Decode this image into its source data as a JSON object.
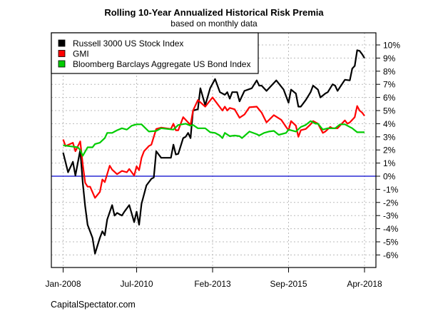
{
  "chart_data": {
    "type": "line",
    "title": "Rolling 10-Year Annualized Historical Risk Premia",
    "subtitle": "based on monthly data",
    "xlabel": "",
    "ylabel": "",
    "x_ticks": [
      "Jan-2008",
      "Jul-2010",
      "Feb-2013",
      "Sep-2015",
      "Apr-2018"
    ],
    "x_range": [
      "2008-01",
      "2018-04"
    ],
    "y_ticks": [
      "-6%",
      "-5%",
      "-4%",
      "-3%",
      "-2%",
      "-1%",
      "0%",
      "1%",
      "2%",
      "3%",
      "4%",
      "5%",
      "6%",
      "7%",
      "8%",
      "9%",
      "10%"
    ],
    "ylim": [
      -6,
      10
    ],
    "y_axis_side": "right",
    "grid": true,
    "zero_line_color": "#0000CC",
    "legend_position": "top-left",
    "series": [
      {
        "name": "Russell 3000 US Stock Index",
        "color": "#000000",
        "points": [
          [
            "2008-01",
            1.8
          ],
          [
            "2008-03",
            0.3
          ],
          [
            "2008-05",
            1.1
          ],
          [
            "2008-06",
            0.05
          ],
          [
            "2008-08",
            2.0
          ],
          [
            "2008-09",
            -0.5
          ],
          [
            "2008-10",
            -2.3
          ],
          [
            "2008-11",
            -3.7
          ],
          [
            "2009-01",
            -4.7
          ],
          [
            "2009-02",
            -5.9
          ],
          [
            "2009-04",
            -4.7
          ],
          [
            "2009-05",
            -4.2
          ],
          [
            "2009-06",
            -4.5
          ],
          [
            "2009-07",
            -3.3
          ],
          [
            "2009-09",
            -2.2
          ],
          [
            "2009-10",
            -3.0
          ],
          [
            "2009-11",
            -2.8
          ],
          [
            "2010-01",
            -3.0
          ],
          [
            "2010-02",
            -2.7
          ],
          [
            "2010-04",
            -2.2
          ],
          [
            "2010-06",
            -3.5
          ],
          [
            "2010-07",
            -2.7
          ],
          [
            "2010-08",
            -3.7
          ],
          [
            "2010-09",
            -2.1
          ],
          [
            "2010-11",
            -0.7
          ],
          [
            "2011-01",
            -0.2
          ],
          [
            "2011-02",
            -0.1
          ],
          [
            "2011-03",
            1.9
          ],
          [
            "2011-05",
            1.4
          ],
          [
            "2011-09",
            1.4
          ],
          [
            "2011-10",
            2.4
          ],
          [
            "2011-11",
            1.65
          ],
          [
            "2011-12",
            1.7
          ],
          [
            "2012-02",
            2.9
          ],
          [
            "2012-03",
            3.0
          ],
          [
            "2012-04",
            3.3
          ],
          [
            "2012-05",
            2.9
          ],
          [
            "2012-06",
            5.0
          ],
          [
            "2012-08",
            5.1
          ],
          [
            "2012-09",
            6.7
          ],
          [
            "2012-11",
            5.4
          ],
          [
            "2013-01",
            6.7
          ],
          [
            "2013-03",
            7.4
          ],
          [
            "2013-05",
            6.4
          ],
          [
            "2013-07",
            6.2
          ],
          [
            "2013-08",
            6.4
          ],
          [
            "2013-09",
            5.9
          ],
          [
            "2013-10",
            6.4
          ],
          [
            "2013-12",
            6.4
          ],
          [
            "2014-01",
            5.7
          ],
          [
            "2014-03",
            6.5
          ],
          [
            "2014-06",
            6.7
          ],
          [
            "2014-08",
            7.3
          ],
          [
            "2014-09",
            6.9
          ],
          [
            "2014-10",
            6.9
          ],
          [
            "2014-12",
            6.5
          ],
          [
            "2015-02",
            6.9
          ],
          [
            "2015-04",
            7.3
          ],
          [
            "2015-07",
            6.6
          ],
          [
            "2015-09",
            5.6
          ],
          [
            "2015-10",
            6.6
          ],
          [
            "2015-12",
            6.3
          ],
          [
            "2016-01",
            5.3
          ],
          [
            "2016-02",
            5.3
          ],
          [
            "2016-04",
            5.8
          ],
          [
            "2016-06",
            6.4
          ],
          [
            "2016-07",
            6.9
          ],
          [
            "2016-09",
            6.6
          ],
          [
            "2016-10",
            6.0
          ],
          [
            "2016-12",
            6.3
          ],
          [
            "2017-01",
            6.4
          ],
          [
            "2017-03",
            7.0
          ],
          [
            "2017-04",
            6.9
          ],
          [
            "2017-05",
            6.5
          ],
          [
            "2017-08",
            7.35
          ],
          [
            "2017-10",
            7.3
          ],
          [
            "2017-11",
            8.2
          ],
          [
            "2017-12",
            8.4
          ],
          [
            "2018-01",
            9.6
          ],
          [
            "2018-02",
            9.55
          ],
          [
            "2018-03",
            9.3
          ],
          [
            "2018-04",
            9.0
          ]
        ]
      },
      {
        "name": "GMI",
        "color": "#FF0000",
        "points": [
          [
            "2008-01",
            2.8
          ],
          [
            "2008-02",
            2.3
          ],
          [
            "2008-05",
            2.55
          ],
          [
            "2008-06",
            1.9
          ],
          [
            "2008-08",
            2.65
          ],
          [
            "2008-09",
            0.9
          ],
          [
            "2008-10",
            -0.5
          ],
          [
            "2008-11",
            -0.8
          ],
          [
            "2008-12",
            -0.8
          ],
          [
            "2009-02",
            -1.65
          ],
          [
            "2009-04",
            -1.2
          ],
          [
            "2009-05",
            -0.25
          ],
          [
            "2009-06",
            -0.45
          ],
          [
            "2009-08",
            0.8
          ],
          [
            "2009-09",
            0.5
          ],
          [
            "2009-11",
            0.15
          ],
          [
            "2010-01",
            0.4
          ],
          [
            "2010-03",
            0.3
          ],
          [
            "2010-04",
            0.55
          ],
          [
            "2010-06",
            0.05
          ],
          [
            "2010-07",
            0.75
          ],
          [
            "2010-08",
            0.45
          ],
          [
            "2010-09",
            1.4
          ],
          [
            "2010-10",
            1.9
          ],
          [
            "2010-12",
            2.3
          ],
          [
            "2011-01",
            2.4
          ],
          [
            "2011-03",
            3.6
          ],
          [
            "2011-05",
            3.7
          ],
          [
            "2011-09",
            3.6
          ],
          [
            "2011-10",
            4.0
          ],
          [
            "2011-11",
            3.5
          ],
          [
            "2011-12",
            3.5
          ],
          [
            "2012-02",
            4.5
          ],
          [
            "2012-03",
            4.3
          ],
          [
            "2012-05",
            3.9
          ],
          [
            "2012-06",
            5.0
          ],
          [
            "2012-08",
            5.8
          ],
          [
            "2012-11",
            5.3
          ],
          [
            "2013-02",
            6.0
          ],
          [
            "2013-04",
            5.5
          ],
          [
            "2013-06",
            5.0
          ],
          [
            "2013-07",
            5.3
          ],
          [
            "2013-08",
            5.0
          ],
          [
            "2013-09",
            5.2
          ],
          [
            "2013-11",
            5.1
          ],
          [
            "2014-01",
            4.45
          ],
          [
            "2014-03",
            4.7
          ],
          [
            "2014-05",
            5.25
          ],
          [
            "2014-08",
            5.3
          ],
          [
            "2014-10",
            4.85
          ],
          [
            "2014-12",
            4.1
          ],
          [
            "2015-03",
            4.65
          ],
          [
            "2015-06",
            4.3
          ],
          [
            "2015-08",
            3.75
          ],
          [
            "2015-09",
            3.5
          ],
          [
            "2015-10",
            4.2
          ],
          [
            "2015-12",
            3.85
          ],
          [
            "2016-01",
            3.0
          ],
          [
            "2016-02",
            3.5
          ],
          [
            "2016-04",
            3.6
          ],
          [
            "2016-06",
            3.95
          ],
          [
            "2016-07",
            4.2
          ],
          [
            "2016-09",
            4.0
          ],
          [
            "2016-11",
            3.3
          ],
          [
            "2016-12",
            3.4
          ],
          [
            "2017-02",
            3.75
          ],
          [
            "2017-03",
            3.65
          ],
          [
            "2017-05",
            3.65
          ],
          [
            "2017-08",
            4.25
          ],
          [
            "2017-09",
            4.0
          ],
          [
            "2017-10",
            4.1
          ],
          [
            "2017-12",
            4.5
          ],
          [
            "2018-01",
            5.35
          ],
          [
            "2018-02",
            5.0
          ],
          [
            "2018-03",
            4.85
          ],
          [
            "2018-04",
            4.6
          ]
        ]
      },
      {
        "name": "Bloomberg Barclays Aggregate US Bond Index",
        "color": "#00CC00",
        "points": [
          [
            "2008-01",
            2.35
          ],
          [
            "2008-03",
            2.3
          ],
          [
            "2008-07",
            2.2
          ],
          [
            "2008-08",
            2.0
          ],
          [
            "2008-09",
            1.55
          ],
          [
            "2008-11",
            2.2
          ],
          [
            "2009-01",
            2.2
          ],
          [
            "2009-02",
            2.45
          ],
          [
            "2009-04",
            2.55
          ],
          [
            "2009-06",
            2.9
          ],
          [
            "2009-07",
            3.3
          ],
          [
            "2009-09",
            3.3
          ],
          [
            "2009-11",
            3.5
          ],
          [
            "2010-01",
            3.65
          ],
          [
            "2010-03",
            3.55
          ],
          [
            "2010-05",
            3.85
          ],
          [
            "2010-07",
            3.95
          ],
          [
            "2010-09",
            3.95
          ],
          [
            "2010-12",
            3.4
          ],
          [
            "2011-03",
            3.45
          ],
          [
            "2011-05",
            3.65
          ],
          [
            "2011-10",
            3.55
          ],
          [
            "2011-12",
            3.9
          ],
          [
            "2012-03",
            4.0
          ],
          [
            "2012-05",
            3.85
          ],
          [
            "2012-06",
            3.9
          ],
          [
            "2012-08",
            3.65
          ],
          [
            "2012-11",
            3.65
          ],
          [
            "2013-01",
            3.35
          ],
          [
            "2013-03",
            3.3
          ],
          [
            "2013-05",
            3.1
          ],
          [
            "2013-06",
            2.9
          ],
          [
            "2013-07",
            3.3
          ],
          [
            "2013-09",
            3.05
          ],
          [
            "2013-11",
            3.1
          ],
          [
            "2014-01",
            3.05
          ],
          [
            "2014-02",
            2.9
          ],
          [
            "2014-05",
            3.4
          ],
          [
            "2014-08",
            3.2
          ],
          [
            "2014-09",
            3.1
          ],
          [
            "2014-11",
            3.3
          ],
          [
            "2015-01",
            3.4
          ],
          [
            "2015-03",
            3.45
          ],
          [
            "2015-05",
            3.15
          ],
          [
            "2015-08",
            3.3
          ],
          [
            "2015-09",
            3.55
          ],
          [
            "2015-12",
            3.4
          ],
          [
            "2016-02",
            3.75
          ],
          [
            "2016-04",
            3.9
          ],
          [
            "2016-06",
            4.2
          ],
          [
            "2016-08",
            4.0
          ],
          [
            "2016-09",
            4.0
          ],
          [
            "2016-11",
            3.55
          ],
          [
            "2017-01",
            3.65
          ],
          [
            "2017-04",
            3.65
          ],
          [
            "2017-06",
            3.95
          ],
          [
            "2017-08",
            3.95
          ],
          [
            "2017-09",
            3.85
          ],
          [
            "2017-11",
            3.65
          ],
          [
            "2018-01",
            3.35
          ],
          [
            "2018-04",
            3.35
          ]
        ]
      }
    ]
  },
  "footer": "CapitalSpectator.com"
}
